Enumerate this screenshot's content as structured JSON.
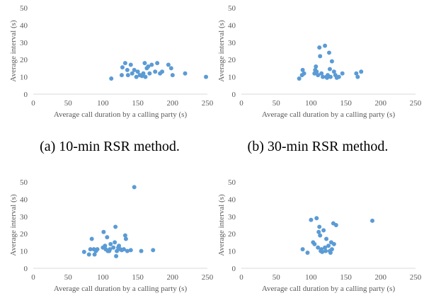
{
  "chart_data": [
    {
      "type": "scatter",
      "x_label": "Average call duration by a calling party (s)",
      "y_label": "Average interval (s)",
      "caption": "(a) 10-min RSR method.",
      "color": "#5b9bd5",
      "xlim": [
        0,
        250
      ],
      "xticks": [
        0,
        50,
        100,
        150,
        200,
        250
      ],
      "ylim": [
        0,
        50
      ],
      "yticks": [
        0,
        10,
        20,
        30,
        40,
        50
      ],
      "x": [
        112,
        127,
        128,
        132,
        135,
        136,
        140,
        142,
        145,
        148,
        150,
        153,
        156,
        158,
        160,
        161,
        163,
        165,
        167,
        170,
        175,
        178,
        182,
        185,
        194,
        198,
        200,
        218,
        248
      ],
      "y": [
        9,
        11,
        15.5,
        18,
        14,
        11,
        17,
        12,
        14,
        10,
        13,
        11,
        10.5,
        12,
        18,
        10,
        15,
        16,
        12,
        17,
        13,
        18,
        12,
        13,
        17,
        15,
        11,
        12,
        10
      ]
    },
    {
      "type": "scatter",
      "x_label": "Average call duration by a calling party (s)",
      "y_label": "Average interval (s)",
      "caption": "(b) 30-min RSR method.",
      "color": "#5b9bd5",
      "xlim": [
        0,
        250
      ],
      "xticks": [
        0,
        50,
        100,
        150,
        200,
        250
      ],
      "ylim": [
        0,
        50
      ],
      "yticks": [
        0,
        10,
        20,
        30,
        40,
        50
      ],
      "x": [
        83,
        87,
        88,
        90,
        105,
        106,
        107,
        108,
        110,
        112,
        113,
        115,
        117,
        120,
        122,
        123,
        124,
        126,
        127,
        128,
        130,
        133,
        135,
        137,
        140,
        145,
        165,
        167,
        172
      ],
      "y": [
        9,
        11,
        14,
        12,
        12,
        14,
        16,
        13,
        11,
        27,
        22,
        12,
        10,
        28,
        10,
        9.5,
        11,
        24,
        14.5,
        10,
        19,
        13,
        11,
        9.5,
        10,
        12,
        12,
        10,
        13
      ]
    },
    {
      "type": "scatter",
      "x_label": "Average call duration by a calling party (s)",
      "y_label": "Average interval (s)",
      "color": "#5b9bd5",
      "xlim": [
        0,
        250
      ],
      "xticks": [
        0,
        50,
        100,
        150,
        200,
        250
      ],
      "ylim": [
        0,
        50
      ],
      "yticks": [
        0,
        10,
        20,
        30,
        40,
        50
      ],
      "x": [
        73,
        80,
        82,
        84,
        87,
        88,
        90,
        92,
        100,
        101,
        103,
        104,
        106,
        107,
        109,
        110,
        111,
        115,
        117,
        118,
        119,
        120,
        122,
        123,
        125,
        127,
        130,
        132,
        133,
        135,
        140,
        145,
        155,
        172
      ],
      "y": [
        9.5,
        8,
        11,
        17,
        11,
        8,
        10,
        11,
        12,
        21,
        13,
        11,
        18,
        10,
        10,
        11,
        14,
        12,
        15,
        24,
        7,
        10,
        12,
        13,
        11,
        10.5,
        11,
        19,
        17,
        10,
        10.5,
        47,
        10,
        10.5
      ]
    },
    {
      "type": "scatter",
      "x_label": "Average call duration by a calling party (s)",
      "y_label": "Average interval (s)",
      "color": "#5b9bd5",
      "xlim": [
        0,
        250
      ],
      "xticks": [
        0,
        50,
        100,
        150,
        200,
        250
      ],
      "ylim": [
        0,
        50
      ],
      "yticks": [
        0,
        10,
        20,
        30,
        40,
        50
      ],
      "x": [
        88,
        95,
        100,
        103,
        105,
        108,
        110,
        111,
        112,
        113,
        114,
        115,
        116,
        118,
        120,
        121,
        122,
        125,
        127,
        128,
        129,
        130,
        132,
        133,
        136,
        188
      ],
      "y": [
        11,
        9,
        28,
        15,
        14,
        29,
        12,
        21,
        24,
        19,
        10,
        11,
        9.5,
        22,
        12,
        10,
        17,
        13,
        10,
        9,
        15,
        11,
        26,
        14,
        25,
        27.5
      ]
    }
  ]
}
